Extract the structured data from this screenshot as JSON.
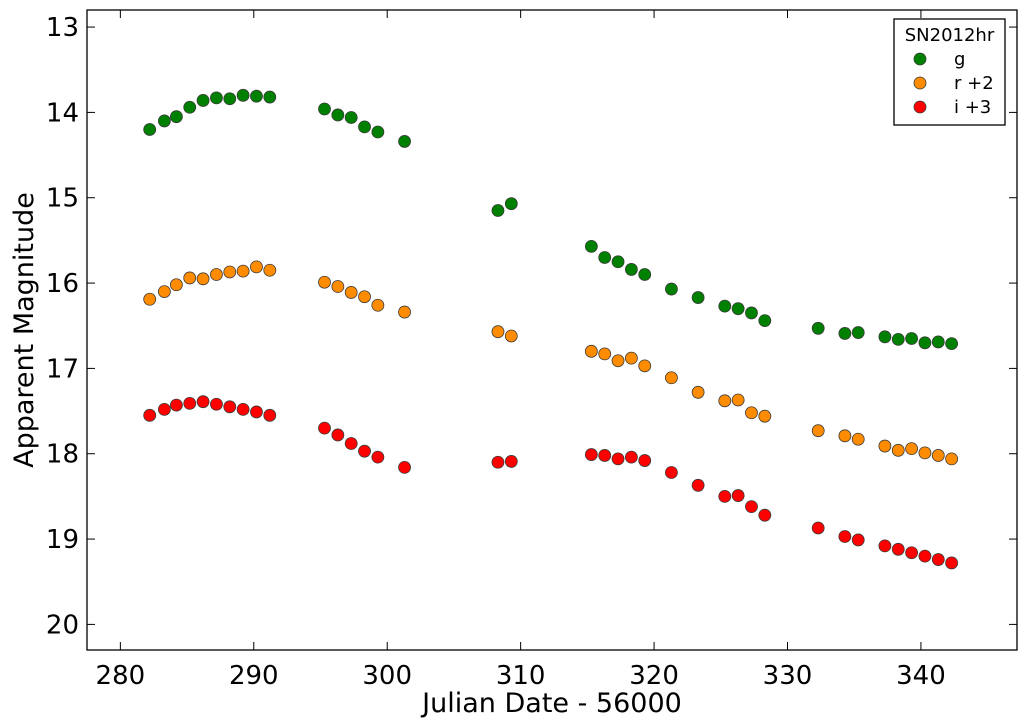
{
  "chart_data": {
    "type": "scatter",
    "xlabel": "Julian Date - 56000",
    "ylabel": "Apparent Magnitude",
    "xlim": [
      277.5,
      347.2
    ],
    "ylim": [
      20.3,
      12.8
    ],
    "y_inverted": true,
    "xticks": [
      280,
      290,
      300,
      310,
      320,
      330,
      340
    ],
    "yticks": [
      13,
      14,
      15,
      16,
      17,
      18,
      19,
      20
    ],
    "grid": false,
    "legend": {
      "title": "SN2012hr",
      "placement": "top-right"
    },
    "series": [
      {
        "name": "g",
        "color": "#008000",
        "x": [
          282.2,
          283.3,
          284.2,
          285.2,
          286.2,
          287.2,
          288.2,
          289.2,
          290.2,
          291.2,
          295.3,
          296.3,
          297.3,
          298.3,
          299.3,
          301.3,
          308.3,
          309.3,
          315.3,
          316.3,
          317.3,
          318.3,
          319.3,
          321.3,
          323.3,
          325.3,
          326.3,
          327.3,
          328.3,
          332.3,
          334.3,
          335.3,
          337.3,
          338.3,
          339.3,
          340.3,
          341.3,
          342.3
        ],
        "y": [
          14.2,
          14.1,
          14.05,
          13.94,
          13.86,
          13.83,
          13.84,
          13.8,
          13.81,
          13.82,
          13.96,
          14.03,
          14.06,
          14.17,
          14.23,
          14.34,
          15.15,
          15.07,
          15.57,
          15.7,
          15.75,
          15.84,
          15.9,
          16.07,
          16.17,
          16.27,
          16.3,
          16.35,
          16.44,
          16.53,
          16.59,
          16.58,
          16.63,
          16.66,
          16.65,
          16.7,
          16.69,
          16.71
        ]
      },
      {
        "name": "r +2",
        "color": "#ff8c00",
        "x": [
          282.2,
          283.3,
          284.2,
          285.2,
          286.2,
          287.2,
          288.2,
          289.2,
          290.2,
          291.2,
          295.3,
          296.3,
          297.3,
          298.3,
          299.3,
          301.3,
          308.3,
          309.3,
          315.3,
          316.3,
          317.3,
          318.3,
          319.3,
          321.3,
          323.3,
          325.3,
          326.3,
          327.3,
          328.3,
          332.3,
          334.3,
          335.3,
          337.3,
          338.3,
          339.3,
          340.3,
          341.3,
          342.3
        ],
        "y": [
          16.19,
          16.1,
          16.02,
          15.94,
          15.95,
          15.9,
          15.87,
          15.86,
          15.81,
          15.85,
          15.99,
          16.04,
          16.11,
          16.16,
          16.26,
          16.34,
          16.57,
          16.62,
          16.8,
          16.83,
          16.91,
          16.88,
          16.97,
          17.11,
          17.28,
          17.38,
          17.37,
          17.52,
          17.56,
          17.73,
          17.79,
          17.83,
          17.91,
          17.96,
          17.94,
          17.99,
          18.02,
          18.06
        ]
      },
      {
        "name": "i +3",
        "color": "#ff0000",
        "x": [
          282.2,
          283.3,
          284.2,
          285.2,
          286.2,
          287.2,
          288.2,
          289.2,
          290.2,
          291.2,
          295.3,
          296.3,
          297.3,
          298.3,
          299.3,
          301.3,
          308.3,
          309.3,
          315.3,
          316.3,
          317.3,
          318.3,
          319.3,
          321.3,
          323.3,
          325.3,
          326.3,
          327.3,
          328.3,
          332.3,
          334.3,
          335.3,
          337.3,
          338.3,
          339.3,
          340.3,
          341.3,
          342.3
        ],
        "y": [
          17.55,
          17.48,
          17.43,
          17.41,
          17.39,
          17.42,
          17.45,
          17.48,
          17.51,
          17.55,
          17.7,
          17.78,
          17.88,
          17.97,
          18.04,
          18.16,
          18.1,
          18.09,
          18.01,
          18.02,
          18.06,
          18.04,
          18.08,
          18.22,
          18.37,
          18.5,
          18.49,
          18.62,
          18.72,
          18.87,
          18.97,
          19.01,
          19.08,
          19.12,
          19.16,
          19.2,
          19.24,
          19.28
        ]
      }
    ]
  }
}
